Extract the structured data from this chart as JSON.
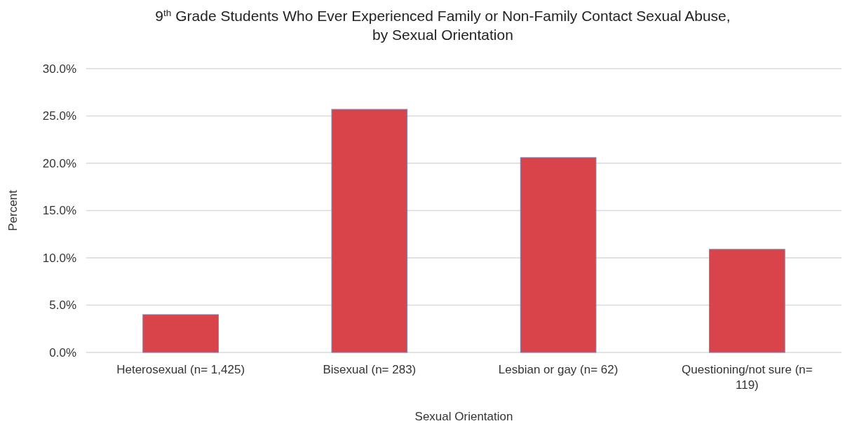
{
  "chart_data": {
    "type": "bar",
    "title": "9$^{th}$ Grade Students Who Ever Experienced Family or Non-Family Contact Sexual Abuse, by Sexual Orientation",
    "xlabel": "Sexual Orientation",
    "ylabel": "Percent",
    "categories": [
      "Heterosexual (n= 1,425)",
      "Bisexual (n= 283)",
      "Lesbian or gay (n= 62)",
      "Questioning/not sure (n= 119)"
    ],
    "values": [
      4.0,
      25.7,
      20.6,
      10.9
    ],
    "color": "#d9434a",
    "ylim": [
      0,
      30
    ],
    "yticks": [
      {
        "value": 0,
        "label": "0.0%"
      },
      {
        "value": 5,
        "label": "5.0%"
      },
      {
        "value": 10,
        "label": "10.0%"
      },
      {
        "value": 15,
        "label": "15.0%"
      },
      {
        "value": 20,
        "label": "20.0%"
      },
      {
        "value": 25,
        "label": "25.0%"
      },
      {
        "value": 30,
        "label": "30.0%"
      }
    ],
    "grid": "y"
  }
}
